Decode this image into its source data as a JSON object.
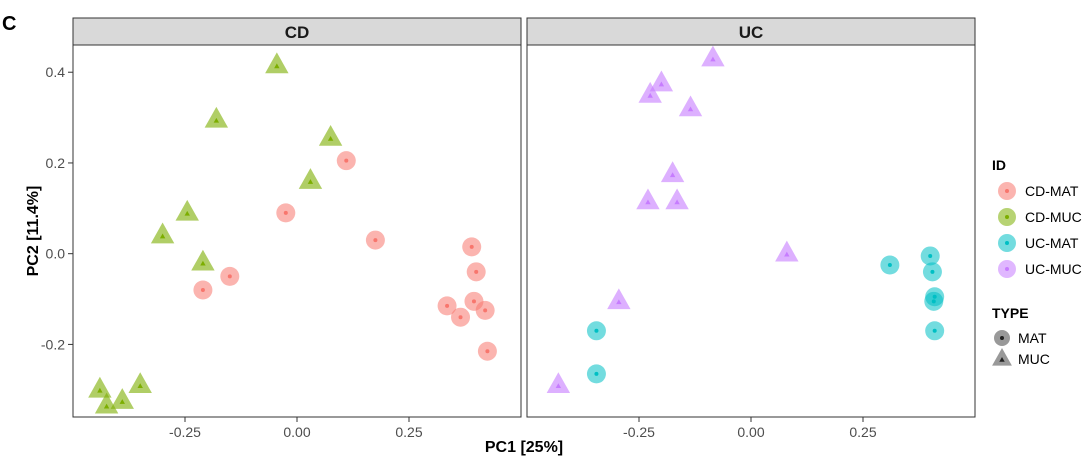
{
  "panel_letter": "C",
  "chart_data": {
    "type": "scatter",
    "xlabel": "PC1 [25%]",
    "ylabel": "PC2 [11.4%]",
    "xlim": [
      -0.5,
      0.5
    ],
    "ylim": [
      -0.36,
      0.46
    ],
    "x_ticks": [
      -0.25,
      0.0,
      0.25
    ],
    "x_tick_labels": [
      "-0.25",
      "0.00",
      "0.25"
    ],
    "y_ticks": [
      -0.2,
      0.0,
      0.2,
      0.4
    ],
    "y_tick_labels": [
      "-0.2",
      "0.0",
      "0.2",
      "0.4"
    ],
    "grid": false,
    "legend_position": "right",
    "facets": [
      {
        "label": "CD",
        "series": [
          {
            "name": "CD-MAT",
            "type": "MAT",
            "points": [
              [
                0.11,
                0.205
              ],
              [
                -0.025,
                0.09
              ],
              [
                0.175,
                0.03
              ],
              [
                -0.15,
                -0.05
              ],
              [
                -0.21,
                -0.08
              ],
              [
                0.39,
                0.015
              ],
              [
                0.4,
                -0.04
              ],
              [
                0.335,
                -0.115
              ],
              [
                0.395,
                -0.105
              ],
              [
                0.365,
                -0.14
              ],
              [
                0.42,
                -0.125
              ],
              [
                0.425,
                -0.215
              ]
            ]
          },
          {
            "name": "CD-MUC",
            "type": "MUC",
            "points": [
              [
                -0.045,
                0.415
              ],
              [
                -0.18,
                0.295
              ],
              [
                0.075,
                0.255
              ],
              [
                0.03,
                0.16
              ],
              [
                -0.245,
                0.09
              ],
              [
                -0.3,
                0.04
              ],
              [
                -0.21,
                -0.02
              ],
              [
                -0.44,
                -0.3
              ],
              [
                -0.35,
                -0.29
              ],
              [
                -0.39,
                -0.325
              ],
              [
                -0.425,
                -0.335
              ]
            ]
          }
        ]
      },
      {
        "label": "UC",
        "series": [
          {
            "name": "UC-MAT",
            "type": "MAT",
            "points": [
              [
                0.31,
                -0.025
              ],
              [
                0.4,
                -0.005
              ],
              [
                0.405,
                -0.04
              ],
              [
                0.41,
                -0.095
              ],
              [
                0.408,
                -0.105
              ],
              [
                0.41,
                -0.17
              ],
              [
                -0.345,
                -0.17
              ],
              [
                -0.345,
                -0.265
              ]
            ]
          },
          {
            "name": "UC-MUC",
            "type": "MUC",
            "points": [
              [
                -0.085,
                0.43
              ],
              [
                -0.2,
                0.375
              ],
              [
                -0.225,
                0.35
              ],
              [
                -0.135,
                0.32
              ],
              [
                -0.175,
                0.175
              ],
              [
                -0.23,
                0.115
              ],
              [
                -0.165,
                0.115
              ],
              [
                0.08,
                0.0
              ],
              [
                -0.295,
                -0.105
              ],
              [
                -0.43,
                -0.29
              ]
            ]
          }
        ]
      }
    ],
    "legend": {
      "id_title": "ID",
      "id_items": [
        {
          "label": "CD-MAT",
          "color": "#F8766D"
        },
        {
          "label": "CD-MUC",
          "color": "#7CAE00"
        },
        {
          "label": "UC-MAT",
          "color": "#00BFC4"
        },
        {
          "label": "UC-MUC",
          "color": "#C77CFF"
        }
      ],
      "type_title": "TYPE",
      "type_items": [
        {
          "label": "MAT",
          "shape": "circle"
        },
        {
          "label": "MUC",
          "shape": "triangle"
        }
      ]
    },
    "colors": {
      "CD-MAT": "#F8766D",
      "CD-MUC": "#7CAE00",
      "UC-MAT": "#00BFC4",
      "UC-MUC": "#C77CFF",
      "strip_fill": "#D9D9D9",
      "panel_border": "#333333"
    }
  }
}
